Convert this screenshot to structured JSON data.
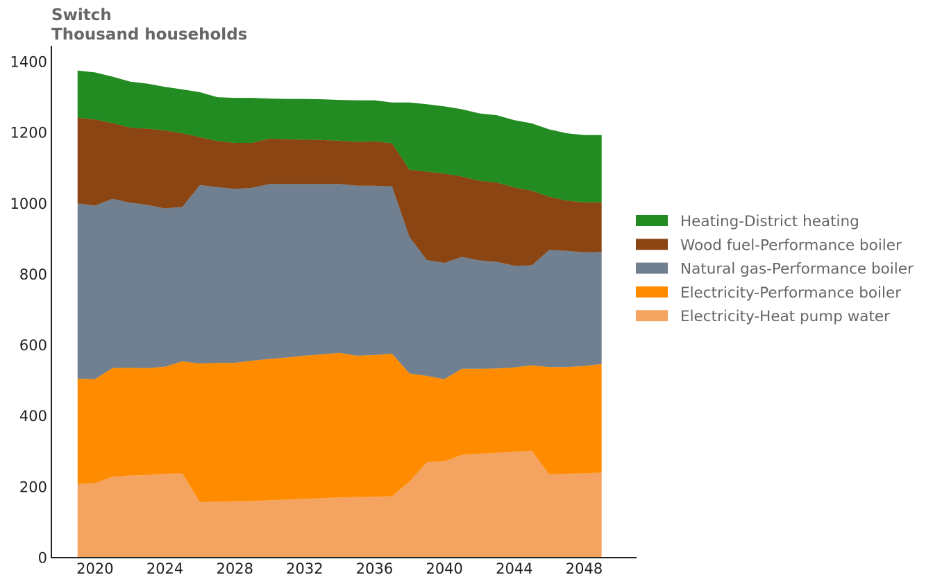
{
  "chart_data": {
    "type": "area",
    "stacked": true,
    "title": "Switch",
    "subtitle": "Thousand households",
    "xlabel": "",
    "ylabel": "",
    "xlim": [
      2017.5,
      2051
    ],
    "ylim": [
      0,
      1400
    ],
    "x_ticks": [
      2020,
      2024,
      2028,
      2032,
      2036,
      2040,
      2044,
      2048
    ],
    "y_ticks": [
      0,
      200,
      400,
      600,
      800,
      1000,
      1200,
      1400
    ],
    "grid": false,
    "legend_position": "right",
    "x": [
      2019,
      2020,
      2021,
      2022,
      2023,
      2024,
      2025,
      2026,
      2027,
      2028,
      2029,
      2030,
      2031,
      2032,
      2033,
      2034,
      2035,
      2036,
      2037,
      2038,
      2039,
      2040,
      2041,
      2042,
      2043,
      2044,
      2045,
      2046,
      2047,
      2048,
      2049
    ],
    "series": [
      {
        "name": "Electricity-Heat pump water",
        "color": "#f4a460",
        "values": [
          208,
          211,
          228,
          232,
          233,
          237,
          238,
          157,
          158,
          159,
          160,
          162,
          164,
          166,
          168,
          170,
          171,
          172,
          173,
          215,
          270,
          272,
          290,
          294,
          296,
          299,
          302,
          235,
          237,
          238,
          240
        ]
      },
      {
        "name": "Electricity-Performance boiler",
        "color": "#ff8c00",
        "values": [
          297,
          293,
          307,
          304,
          302,
          302,
          316,
          391,
          392,
          391,
          396,
          399,
          401,
          404,
          406,
          408,
          399,
          400,
          403,
          305,
          243,
          232,
          243,
          239,
          238,
          238,
          241,
          303,
          301,
          303,
          307
        ]
      },
      {
        "name": "Natural gas-Performance boiler",
        "color": "#708090",
        "values": [
          495,
          490,
          478,
          466,
          461,
          447,
          436,
          504,
          496,
          491,
          488,
          494,
          490,
          485,
          481,
          477,
          480,
          478,
          472,
          385,
          327,
          328,
          316,
          306,
          301,
          287,
          282,
          331,
          328,
          321,
          316
        ]
      },
      {
        "name": "Wood fuel-Performance boiler",
        "color": "#8b4513",
        "values": [
          242,
          243,
          214,
          212,
          215,
          220,
          208,
          135,
          130,
          130,
          127,
          128,
          126,
          125,
          124,
          122,
          124,
          125,
          122,
          190,
          250,
          252,
          227,
          225,
          224,
          221,
          211,
          150,
          142,
          141,
          140
        ]
      },
      {
        "name": "Heating-District heating",
        "color": "#228b22",
        "values": [
          133,
          133,
          131,
          130,
          127,
          123,
          124,
          127,
          124,
          127,
          127,
          113,
          114,
          115,
          115,
          115,
          117,
          116,
          115,
          190,
          190,
          190,
          190,
          190,
          190,
          190,
          190,
          190,
          190,
          190,
          190
        ]
      }
    ]
  }
}
